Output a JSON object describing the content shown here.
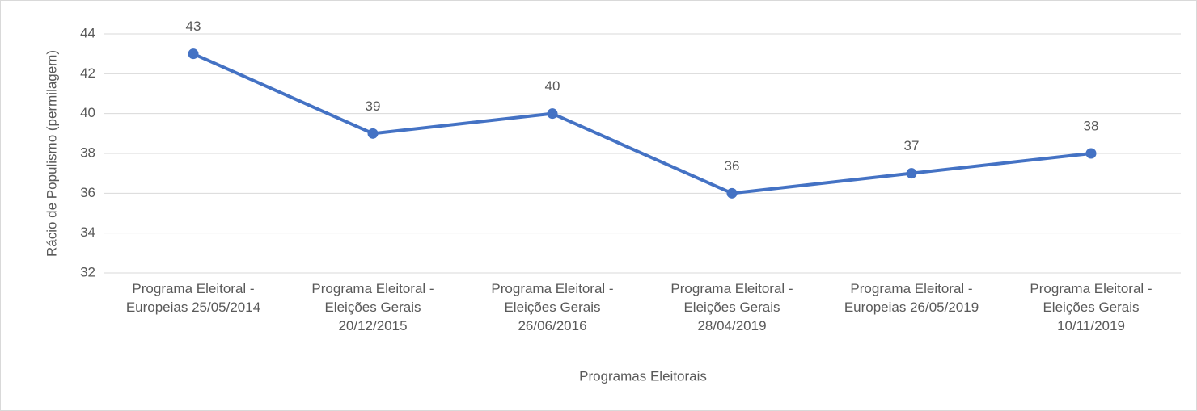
{
  "chart_data": {
    "type": "line",
    "x_label": "Programas Eleitorais",
    "y_label": "Rácio de Populismo (permilagem)",
    "categories": [
      "Programa Eleitoral - Europeias 25/05/2014",
      "Programa Eleitoral - Eleições Gerais 20/12/2015",
      "Programa Eleitoral - Eleições Gerais 26/06/2016",
      "Programa Eleitoral - Eleições Gerais 28/04/2019",
      "Programa Eleitoral - Europeias 26/05/2019",
      "Programa Eleitoral - Eleições Gerais 10/11/2019"
    ],
    "values": [
      43,
      39,
      40,
      36,
      37,
      38
    ],
    "color": "#4472c4",
    "ylim": [
      32,
      44
    ],
    "yticks": [
      32,
      34,
      36,
      38,
      40,
      42,
      44
    ],
    "grid": true
  }
}
